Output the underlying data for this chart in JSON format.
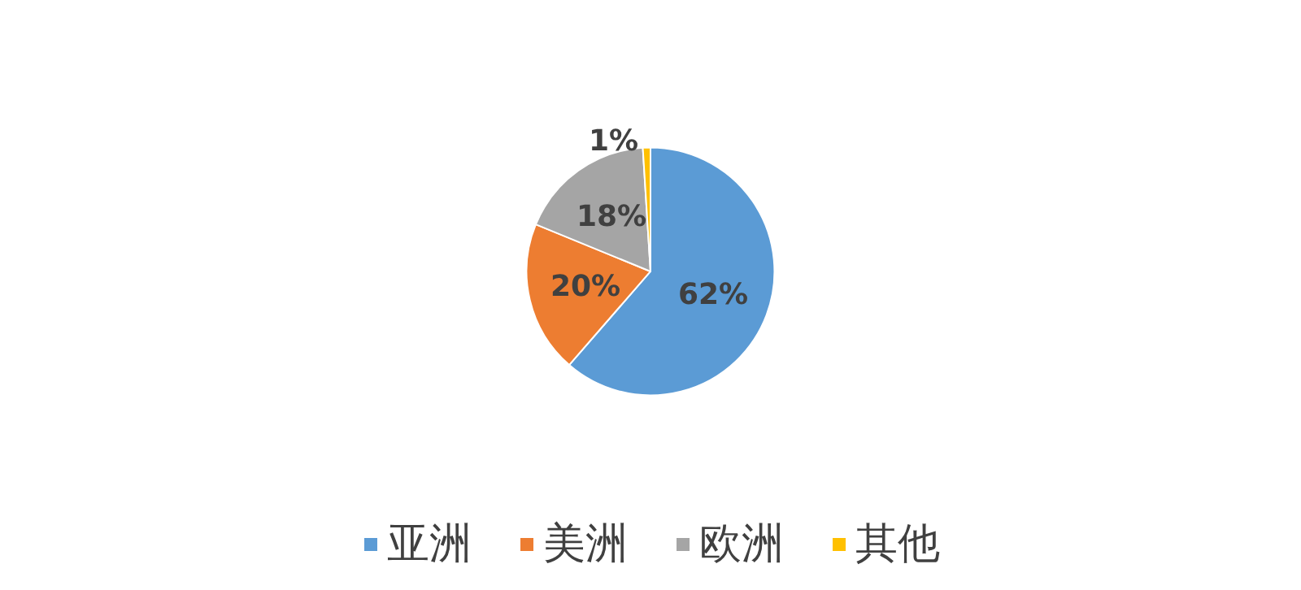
{
  "chart_data": {
    "type": "pie",
    "categories": [
      "亚洲",
      "美洲",
      "欧洲",
      "其他"
    ],
    "values": [
      62,
      20,
      18,
      1
    ],
    "colors": [
      "#5b9bd5",
      "#ed7d31",
      "#a5a5a5",
      "#ffc000"
    ],
    "value_labels": [
      "62%",
      "20%",
      "18%",
      "1%"
    ],
    "legend": "bottom"
  }
}
